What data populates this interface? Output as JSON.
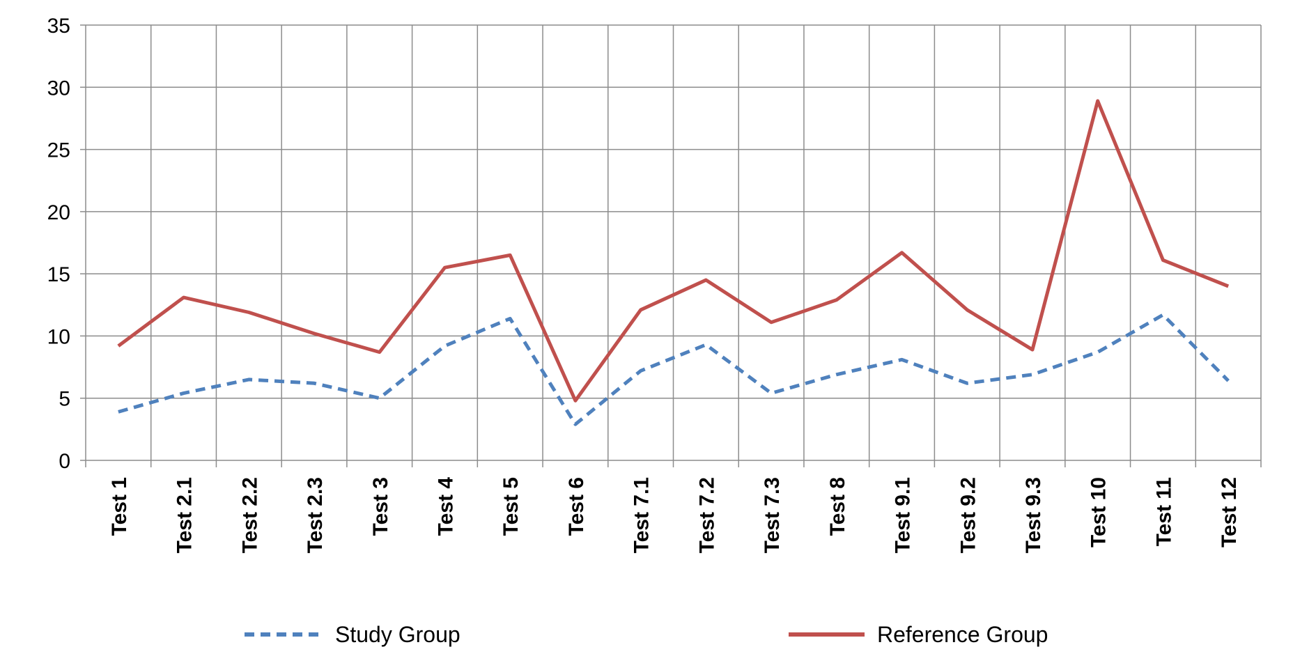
{
  "chart_data": {
    "type": "line",
    "title": "",
    "xlabel": "",
    "ylabel": "",
    "ylim": [
      0,
      35
    ],
    "yticks": [
      0,
      5,
      10,
      15,
      20,
      25,
      30,
      35
    ],
    "grid": true,
    "legend_position": "bottom",
    "categories": [
      "Test 1",
      "Test 2.1",
      "Test 2.2",
      "Test 2.3",
      "Test 3",
      "Test 4",
      "Test 5",
      "Test 6",
      "Test 7.1",
      "Test 7.2",
      "Test 7.3",
      "Test 8",
      "Test 9.1",
      "Test 9.2",
      "Test 9.3",
      "Test 10",
      "Test 11",
      "Test 12"
    ],
    "series": [
      {
        "name": "Study Group",
        "color": "#4f81bd",
        "style": "dashed",
        "values": [
          3.9,
          5.4,
          6.5,
          6.2,
          5.0,
          9.2,
          11.4,
          2.9,
          7.2,
          9.3,
          5.4,
          6.9,
          8.1,
          6.2,
          6.9,
          8.7,
          11.7,
          6.4
        ]
      },
      {
        "name": "Reference Group",
        "color": "#c0504d",
        "style": "solid",
        "values": [
          9.2,
          13.1,
          11.9,
          10.2,
          8.7,
          15.5,
          16.5,
          4.8,
          12.1,
          14.5,
          11.1,
          12.9,
          16.7,
          12.1,
          8.9,
          28.9,
          16.1,
          14.0
        ]
      }
    ]
  }
}
